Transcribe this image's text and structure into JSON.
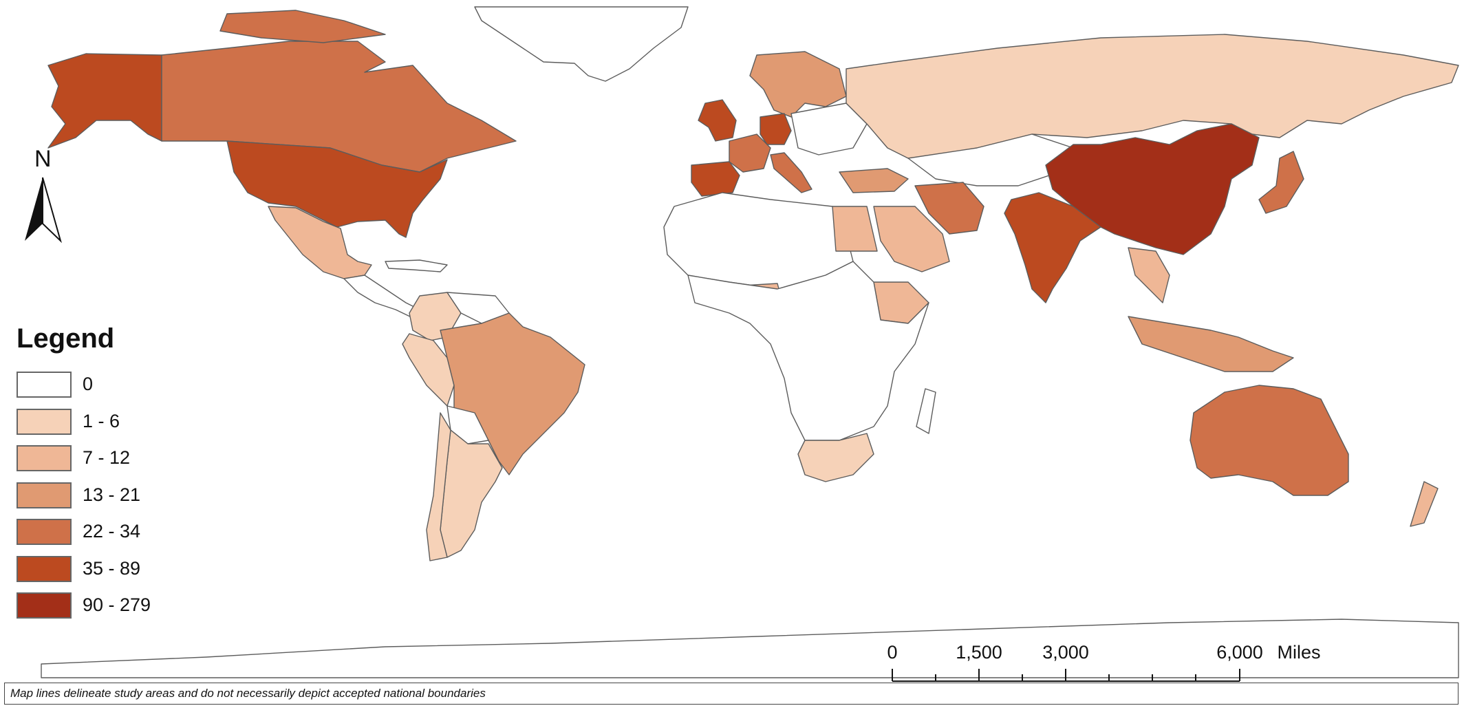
{
  "map": {
    "north_arrow_label": "N",
    "legend": {
      "title": "Legend",
      "classes": [
        {
          "label": "0",
          "color": "#ffffff"
        },
        {
          "label": "1 - 6",
          "color": "#f6d2b8"
        },
        {
          "label": "7 - 12",
          "color": "#efb796"
        },
        {
          "label": "13 - 21",
          "color": "#e09a72"
        },
        {
          "label": "22 - 34",
          "color": "#cf7149"
        },
        {
          "label": "35 - 89",
          "color": "#bc4a20"
        },
        {
          "label": "90 - 279",
          "color": "#a32f18"
        }
      ]
    },
    "scale_bar": {
      "labels": [
        "0",
        "1,500",
        "3,000",
        "6,000",
        "Miles"
      ]
    },
    "footnote": "Map lines delineate study areas and do not necessarily depict accepted national boundaries",
    "regions": [
      {
        "name": "Alaska",
        "class": 5
      },
      {
        "name": "Canada",
        "class": 4
      },
      {
        "name": "United States",
        "class": 5
      },
      {
        "name": "Mexico",
        "class": 2
      },
      {
        "name": "Greenland",
        "class": 0
      },
      {
        "name": "Brazil",
        "class": 3
      },
      {
        "name": "Colombia",
        "class": 1
      },
      {
        "name": "Peru",
        "class": 1
      },
      {
        "name": "Argentina",
        "class": 1
      },
      {
        "name": "Chile",
        "class": 1
      },
      {
        "name": "Russia",
        "class": 1
      },
      {
        "name": "China",
        "class": 6
      },
      {
        "name": "India",
        "class": 5
      },
      {
        "name": "Australia",
        "class": 4
      },
      {
        "name": "United Kingdom",
        "class": 5
      },
      {
        "name": "Germany",
        "class": 5
      },
      {
        "name": "Spain",
        "class": 5
      },
      {
        "name": "France",
        "class": 4
      },
      {
        "name": "Italy",
        "class": 4
      },
      {
        "name": "Iran",
        "class": 4
      },
      {
        "name": "Japan",
        "class": 4
      },
      {
        "name": "Indonesia",
        "class": 3
      },
      {
        "name": "South Africa",
        "class": 1
      },
      {
        "name": "Egypt",
        "class": 2
      },
      {
        "name": "Saudi Arabia",
        "class": 2
      },
      {
        "name": "Turkey",
        "class": 3
      },
      {
        "name": "Scandinavia",
        "class": 3
      },
      {
        "name": "Thailand",
        "class": 2
      },
      {
        "name": "Ethiopia",
        "class": 2
      },
      {
        "name": "Nigeria",
        "class": 2
      },
      {
        "name": "New Zealand",
        "class": 2
      },
      {
        "name": "Antarctica",
        "class": 0
      }
    ]
  }
}
